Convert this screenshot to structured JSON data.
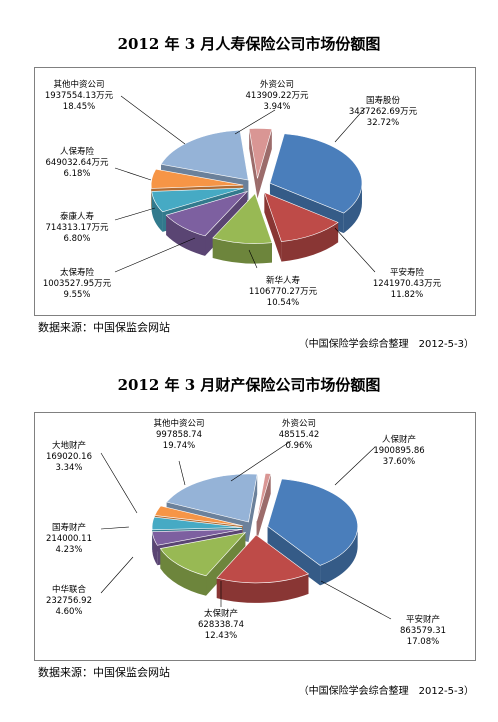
{
  "charts": [
    {
      "title": "2012 年 3 月人寿保险公司市场份额图",
      "source": "数据来源：中国保监会网站",
      "credit": "（中国保险学会综合整理　2012-5-3）",
      "chart_data": {
        "type": "pie",
        "style": "3d-exploded",
        "unit": "万元",
        "slices": [
          {
            "name": "国寿股份",
            "value_text": "3437262.69万元",
            "pct_text": "32.72%",
            "value": 3437262.69,
            "pct": 32.72,
            "color": "#4a7ebb"
          },
          {
            "name": "平安寿险",
            "value_text": "1241970.43万元",
            "pct_text": "11.82%",
            "value": 1241970.43,
            "pct": 11.82,
            "color": "#be4b48"
          },
          {
            "name": "新华人寿",
            "value_text": "1106770.27万元",
            "pct_text": "10.54%",
            "value": 1106770.27,
            "pct": 10.54,
            "color": "#98b954"
          },
          {
            "name": "太保寿险",
            "value_text": "1003527.95万元",
            "pct_text": "9.55%",
            "value": 1003527.95,
            "pct": 9.55,
            "color": "#7d60a0"
          },
          {
            "name": "泰康人寿",
            "value_text": "714313.17万元",
            "pct_text": "6.80%",
            "value": 714313.17,
            "pct": 6.8,
            "color": "#46aac4"
          },
          {
            "name": "人保寿险",
            "value_text": "649032.64万元",
            "pct_text": "6.18%",
            "value": 649032.64,
            "pct": 6.18,
            "color": "#f69546"
          },
          {
            "name": "其他中资公司",
            "value_text": "1937554.13万元",
            "pct_text": "18.45%",
            "value": 1937554.13,
            "pct": 18.45,
            "color": "#95b3d7"
          },
          {
            "name": "外资公司",
            "value_text": "413909.22万元",
            "pct_text": "3.94%",
            "value": 413909.22,
            "pct": 3.94,
            "color": "#d99694"
          }
        ]
      }
    },
    {
      "title": "2012 年 3 月财产保险公司市场份额图",
      "source": "数据来源：中国保监会网站",
      "credit": "（中国保险学会综合整理　2012-5-3）",
      "chart_data": {
        "type": "pie",
        "style": "3d-exploded",
        "slices": [
          {
            "name": "人保财产",
            "value_text": "1900895.86",
            "pct_text": "37.60%",
            "value": 1900895.86,
            "pct": 37.6,
            "color": "#4a7ebb"
          },
          {
            "name": "平安财产",
            "value_text": "863579.31",
            "pct_text": "17.08%",
            "value": 863579.31,
            "pct": 17.08,
            "color": "#be4b48"
          },
          {
            "name": "太保财产",
            "value_text": "628338.74",
            "pct_text": "12.43%",
            "value": 628338.74,
            "pct": 12.43,
            "color": "#98b954"
          },
          {
            "name": "中华联合",
            "value_text": "232756.92",
            "pct_text": "4.60%",
            "value": 232756.92,
            "pct": 4.6,
            "color": "#7d60a0"
          },
          {
            "name": "国寿财产",
            "value_text": "214000.11",
            "pct_text": "4.23%",
            "value": 214000.11,
            "pct": 4.23,
            "color": "#46aac4"
          },
          {
            "name": "大地财产",
            "value_text": "169020.16",
            "pct_text": "3.34%",
            "value": 169020.16,
            "pct": 3.34,
            "color": "#f69546"
          },
          {
            "name": "其他中资公司",
            "value_text": "997858.74",
            "pct_text": "19.74%",
            "value": 997858.74,
            "pct": 19.74,
            "color": "#95b3d7"
          },
          {
            "name": "外资公司",
            "value_text": "48515.42",
            "pct_text": "0.96%",
            "value": 48515.42,
            "pct": 0.96,
            "color": "#d99694"
          }
        ]
      }
    }
  ]
}
